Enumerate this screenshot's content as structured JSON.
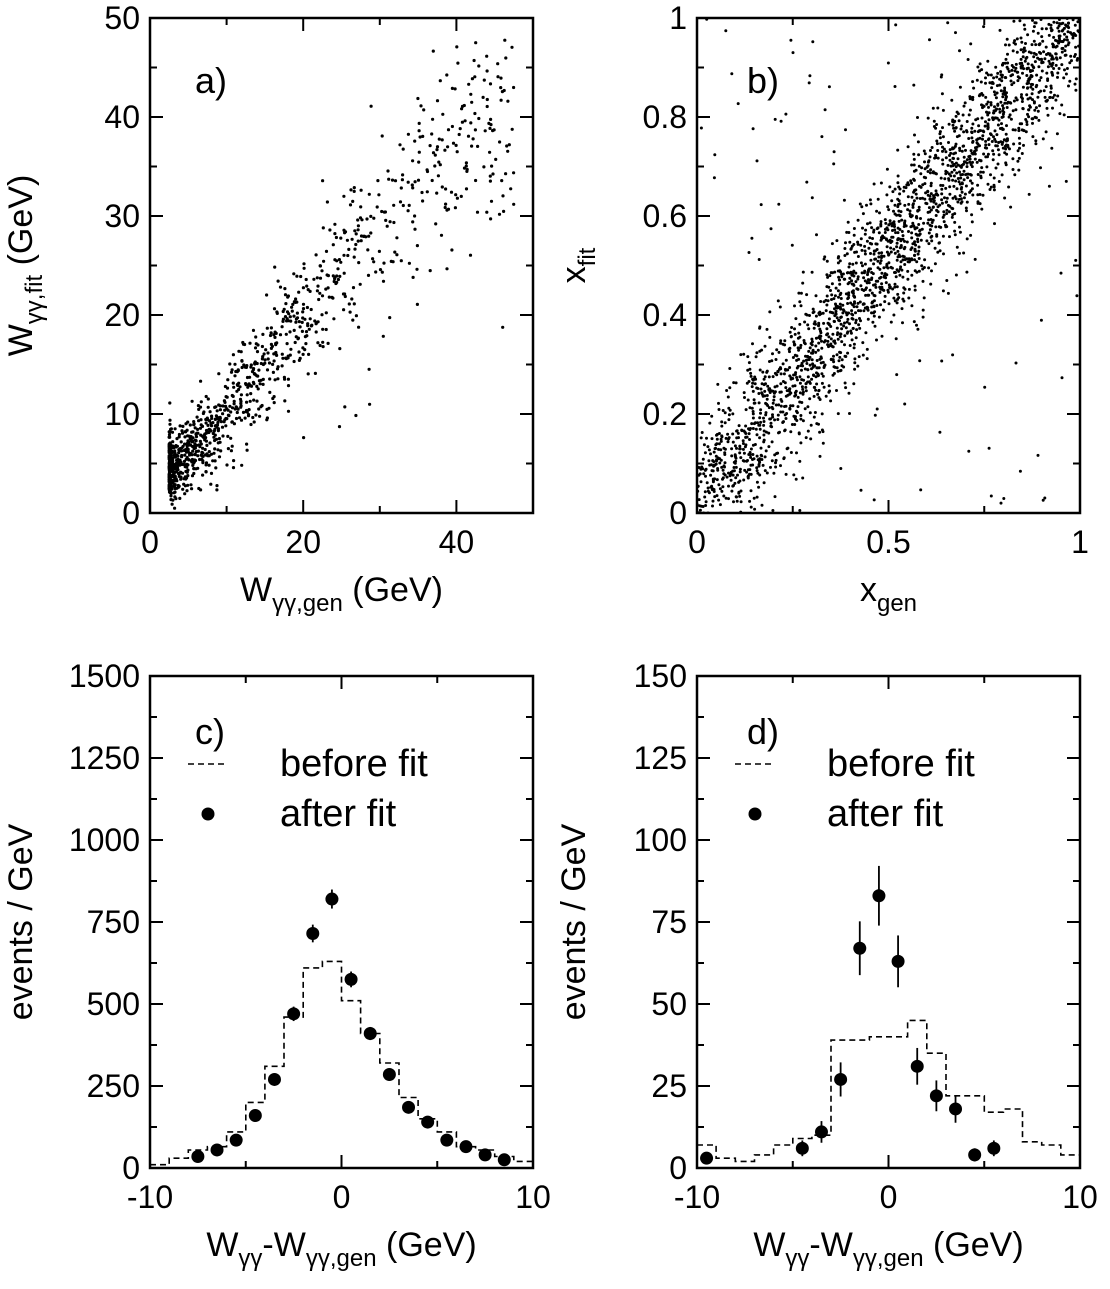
{
  "chart_data": [
    {
      "id": "a",
      "type": "scatter",
      "panel_label": "a)",
      "xlabel": "W",
      "xlabel_sub": "γγ,gen",
      "xlabel_unit": " (GeV)",
      "ylabel": "W",
      "ylabel_sub": "γγ,fit",
      "ylabel_unit": " (GeV)",
      "xlim": [
        0,
        50
      ],
      "ylim": [
        0,
        50
      ],
      "xticks": [
        0,
        20,
        40
      ],
      "xtick_labels": [
        "0",
        "20",
        "40"
      ],
      "xminor": [
        10,
        30
      ],
      "yticks": [
        0,
        10,
        20,
        30,
        40,
        50
      ],
      "ytick_labels": [
        "0",
        "10",
        "20",
        "30",
        "40",
        "50"
      ],
      "grid": false,
      "point_cloud": {
        "trend": [
          [
            3,
            5
          ],
          [
            6,
            6.5
          ],
          [
            10,
            10
          ],
          [
            15,
            15
          ],
          [
            20,
            20
          ],
          [
            30,
            29
          ],
          [
            40,
            38
          ],
          [
            47,
            42
          ]
        ],
        "spread_y": 2.8,
        "density": "highest near W=5-10 GeV, decreasing toward 45 GeV",
        "x_range": [
          2,
          48
        ]
      }
    },
    {
      "id": "b",
      "type": "scatter",
      "panel_label": "b)",
      "xlabel": "x",
      "xlabel_sub": "gen",
      "ylabel": "x",
      "ylabel_sub": "fit",
      "xlim": [
        0,
        1
      ],
      "ylim": [
        0,
        1
      ],
      "xticks": [
        0,
        0.5,
        1
      ],
      "xtick_labels": [
        "0",
        "0.5",
        "1"
      ],
      "xminor": [
        0.25,
        0.75
      ],
      "yticks": [
        0,
        0.2,
        0.4,
        0.6,
        0.8,
        1
      ],
      "ytick_labels": [
        "0",
        "0.2",
        "0.4",
        "0.6",
        "0.8",
        "1"
      ],
      "grid": false,
      "point_cloud": {
        "trend": [
          [
            0,
            0.02
          ],
          [
            0.5,
            0.52
          ],
          [
            1,
            1
          ]
        ],
        "spread_y": 0.08,
        "density": "dense band along diagonal, sparse outliers"
      }
    },
    {
      "id": "c",
      "type": "histogram+points",
      "panel_label": "c)",
      "xlabel": "W",
      "xlabel_sub1": "γγ",
      "xlabel_mid": "-W",
      "xlabel_sub2": "γγ,gen",
      "xlabel_unit": " (GeV)",
      "ylabel": "events / GeV",
      "xlim": [
        -10,
        10
      ],
      "ylim": [
        0,
        1500
      ],
      "xticks": [
        -10,
        0,
        10
      ],
      "xtick_labels": [
        "-10",
        "0",
        "10"
      ],
      "xminor": [
        -5,
        5
      ],
      "yticks": [
        0,
        250,
        500,
        750,
        1000,
        1250,
        1500
      ],
      "ytick_labels": [
        "0",
        "250",
        "500",
        "750",
        "1000",
        "1250",
        "1500"
      ],
      "legend": [
        {
          "label": "before fit",
          "style": "dashed"
        },
        {
          "label": "after fit",
          "style": "marker"
        }
      ],
      "before_fit": {
        "bin_edges": [
          -10,
          -9,
          -8,
          -7,
          -6,
          -5,
          -4,
          -3,
          -2,
          -1,
          0,
          1,
          2,
          3,
          4,
          5,
          6,
          7,
          8,
          9,
          10
        ],
        "values": [
          10,
          30,
          55,
          65,
          110,
          200,
          310,
          460,
          610,
          630,
          510,
          410,
          320,
          215,
          150,
          110,
          65,
          55,
          35,
          20
        ]
      },
      "after_fit": {
        "x": [
          -7.5,
          -6.5,
          -5.5,
          -4.5,
          -3.5,
          -2.5,
          -1.5,
          -0.5,
          0.5,
          1.5,
          2.5,
          3.5,
          4.5,
          5.5,
          6.5,
          7.5,
          8.5
        ],
        "y": [
          35,
          55,
          85,
          160,
          270,
          470,
          715,
          820,
          575,
          410,
          285,
          185,
          140,
          85,
          65,
          40,
          25
        ],
        "err": [
          6,
          8,
          10,
          13,
          17,
          22,
          27,
          29,
          24,
          20,
          17,
          14,
          12,
          10,
          8,
          6,
          5
        ]
      }
    },
    {
      "id": "d",
      "type": "histogram+points",
      "panel_label": "d)",
      "xlabel": "W",
      "xlabel_sub1": "γγ",
      "xlabel_mid": "-W",
      "xlabel_sub2": "γγ,gen",
      "xlabel_unit": " (GeV)",
      "ylabel": "events / GeV",
      "xlim": [
        -10,
        10
      ],
      "ylim": [
        0,
        150
      ],
      "xticks": [
        -10,
        0,
        10
      ],
      "xtick_labels": [
        "-10",
        "0",
        "10"
      ],
      "xminor": [
        -5,
        5
      ],
      "yticks": [
        0,
        25,
        50,
        75,
        100,
        125,
        150
      ],
      "ytick_labels": [
        "0",
        "25",
        "50",
        "75",
        "100",
        "125",
        "150"
      ],
      "legend": [
        {
          "label": "before fit",
          "style": "dashed"
        },
        {
          "label": "after fit",
          "style": "marker"
        }
      ],
      "before_fit": {
        "bin_edges": [
          -10,
          -9,
          -8,
          -7,
          -6,
          -5,
          -4,
          -3,
          -2,
          -1,
          0,
          1,
          2,
          3,
          4,
          5,
          6,
          7,
          8,
          9,
          10
        ],
        "values": [
          7,
          3,
          2,
          4,
          7,
          9,
          10,
          39,
          39,
          40,
          40,
          45,
          35,
          22,
          22,
          17,
          18,
          8,
          7,
          4
        ]
      },
      "after_fit": {
        "x": [
          -9.5,
          -4.5,
          -3.5,
          -2.5,
          -1.5,
          -0.5,
          0.5,
          1.5,
          2.5,
          3.5,
          4.5,
          5.5
        ],
        "y": [
          3,
          6,
          11,
          27,
          67,
          83,
          63,
          31,
          22,
          18,
          4,
          6
        ],
        "err": [
          1.7,
          2.4,
          3.3,
          5.2,
          8.2,
          9.1,
          7.9,
          5.6,
          4.7,
          4.2,
          2,
          2.4
        ]
      }
    }
  ]
}
